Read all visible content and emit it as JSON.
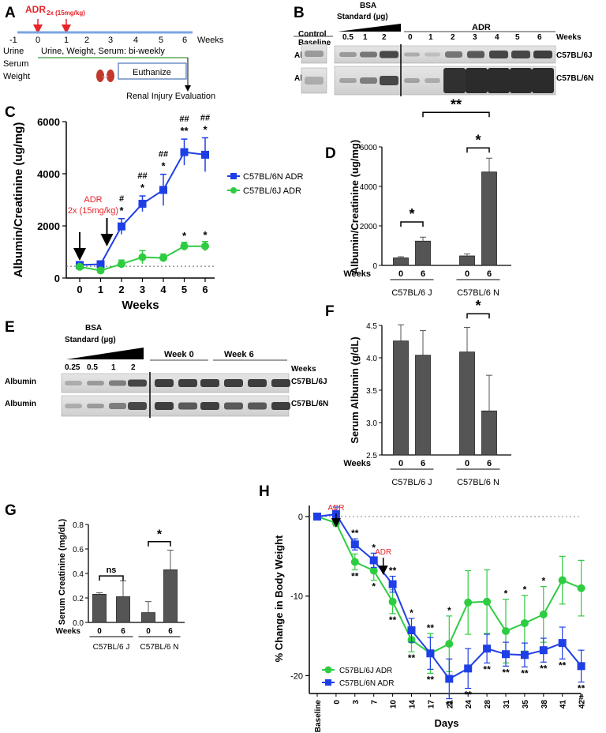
{
  "colors": {
    "blue": "#1f3fe6",
    "green": "#2ecc40",
    "red": "#e8232a",
    "bar": "#555555",
    "gel_bg": "#dcdcdc"
  },
  "panel_letters": [
    "A",
    "B",
    "C",
    "D",
    "E",
    "F",
    "G",
    "H"
  ],
  "panelA": {
    "adr_label": "ADR",
    "adr_sub": "2x (15mg/kg)",
    "weeks": [
      "-1",
      "0",
      "1",
      "2",
      "3",
      "4",
      "5",
      "6"
    ],
    "weeks_label": "Weeks",
    "rows": [
      "Urine",
      "Serum",
      "Weight"
    ],
    "bi_weekly": "Urine, Weight, Serum:  bi-weekly",
    "euthanize": "Euthanize",
    "renal": "Renal Injury Evaluation"
  },
  "panelB": {
    "control": "Control",
    "baseline": "Baseline",
    "bsa_title": "BSA",
    "bsa_standard": "Standard (µg)",
    "bsa_values": [
      "0.5",
      "1",
      "2"
    ],
    "adr": "ADR",
    "weeks": [
      "0",
      "1",
      "2",
      "3",
      "4",
      "5",
      "6"
    ],
    "weeks_label": "Weeks",
    "albumin": "Albumin",
    "strain1": "C57BL/6J",
    "strain2": "C57BL/6N"
  },
  "panelE": {
    "bsa_title": "BSA",
    "bsa_standard": "Standard (µg)",
    "bsa_values": [
      "0.25",
      "0.5",
      "1",
      "2"
    ],
    "week0": "Week 0",
    "week6": "Week 6",
    "weeks_label": "Weeks",
    "albumin": "Albumin",
    "strain1": "C57BL/6J",
    "strain2": "C57BL/6N"
  },
  "chart_data": [
    {
      "id": "C",
      "type": "line",
      "title": "",
      "xlabel": "Weeks",
      "ylabel": "Albumin/Creatinine (ug/mg)",
      "ylim": [
        0,
        6000
      ],
      "yticks": [
        "0",
        "2000",
        "4000",
        "6000"
      ],
      "x": [
        0,
        1,
        2,
        3,
        4,
        5,
        6
      ],
      "series": [
        {
          "name": "C57BL/6N ADR",
          "values": [
            500,
            530,
            1980,
            2850,
            3380,
            4830,
            4730
          ],
          "err": [
            110,
            120,
            300,
            300,
            600,
            500,
            650
          ]
        },
        {
          "name": "C57BL/6J ADR",
          "values": [
            430,
            290,
            540,
            800,
            770,
            1220,
            1220
          ],
          "err": [
            90,
            90,
            150,
            250,
            150,
            150,
            180
          ]
        }
      ],
      "baseline_dotted": 450,
      "adr_annotation": "ADR",
      "adr_annotation2": "2x (15mg/kg)",
      "sig_top": [
        "",
        "",
        "#",
        "##",
        "##",
        "##",
        "##"
      ],
      "sig_mid": [
        "",
        "",
        "*",
        "*",
        "*",
        "**",
        "*"
      ],
      "sig_green": [
        "",
        "",
        "",
        "",
        "",
        "*",
        "*"
      ]
    },
    {
      "id": "D",
      "type": "bar",
      "ylabel": "Albumin/Creatinine (ug/mg)",
      "ylim": [
        0,
        6000
      ],
      "yticks": [
        "0",
        "2000",
        "4000",
        "6000"
      ],
      "categories": [
        "0",
        "6",
        "0",
        "6"
      ],
      "groups": [
        "C57BL/6 J",
        "C57BL/6 N"
      ],
      "weeks_label": "Weeks",
      "values": [
        380,
        1230,
        480,
        4730
      ],
      "err": [
        60,
        200,
        100,
        700
      ],
      "sig": [
        "*",
        "*",
        "**"
      ]
    },
    {
      "id": "F",
      "type": "bar",
      "ylabel": "Serum Albumin (g/dL)",
      "ylim": [
        2.5,
        4.5
      ],
      "yticks": [
        "2.5",
        "3.0",
        "3.5",
        "4.0",
        "4.5"
      ],
      "categories": [
        "0",
        "6",
        "0",
        "6"
      ],
      "groups": [
        "C57BL/6 J",
        "C57BL/6 N"
      ],
      "weeks_label": "Weeks",
      "values": [
        4.26,
        4.04,
        4.09,
        3.18
      ],
      "err": [
        0.25,
        0.38,
        0.38,
        0.55
      ],
      "sig": [
        "*"
      ]
    },
    {
      "id": "G",
      "type": "bar",
      "ylabel": "Serum Creatinine (mg/dL)",
      "ylim": [
        0,
        0.8
      ],
      "yticks": [
        "0.0",
        "0.2",
        "0.4",
        "0.6",
        "0.8"
      ],
      "categories": [
        "0",
        "6",
        "0",
        "6"
      ],
      "groups": [
        "C57BL/6 J",
        "C57BL/6 N"
      ],
      "weeks_label": "Weeks",
      "values": [
        0.23,
        0.21,
        0.08,
        0.43
      ],
      "err": [
        0.012,
        0.13,
        0.09,
        0.16
      ],
      "sig": [
        "ns",
        "*"
      ]
    },
    {
      "id": "H",
      "type": "line",
      "xlabel": "Days",
      "ylabel": "% Change in Body Weight",
      "ylim": [
        -25,
        2
      ],
      "yticks": [
        "0",
        "-10",
        "-20"
      ],
      "categories": [
        "Baseline",
        "0",
        "3",
        "7",
        "10",
        "14",
        "17",
        "21",
        "24",
        "28",
        "31",
        "35",
        "38",
        "41",
        "42"
      ],
      "series": [
        {
          "name": "C57BL/6J ADR",
          "values": [
            0,
            -0.8,
            -5.7,
            -6.8,
            -10.7,
            -15.5,
            -17.2,
            -16.0,
            -10.8,
            -10.7,
            -14.4,
            -13.4,
            -12.3,
            -8.0,
            -9.0
          ],
          "err": [
            0,
            0.4,
            1.0,
            1.2,
            1.5,
            1.5,
            2.5,
            3.5,
            4.0,
            4.0,
            4.0,
            3.5,
            3.5,
            3.0,
            3.5
          ]
        },
        {
          "name": "C57BL/6N ADR",
          "values": [
            0,
            0.3,
            -3.5,
            -5.5,
            -8.5,
            -14.3,
            -17.2,
            -20.4,
            -19.1,
            -16.6,
            -17.3,
            -17.4,
            -16.8,
            -15.9,
            -18.8
          ],
          "err": [
            0,
            0.9,
            0.7,
            0.9,
            1.0,
            1.5,
            2.0,
            2.5,
            2.5,
            1.8,
            1.5,
            1.5,
            1.5,
            2.0,
            2.0
          ]
        }
      ],
      "adr_label": "ADR",
      "sig_above": [
        "",
        "",
        "**",
        "*",
        "**",
        "*",
        "**",
        "*",
        "",
        "",
        "*",
        "*",
        "*",
        "",
        ""
      ],
      "sig_below": [
        "",
        "",
        "**",
        "*",
        "**",
        "**",
        "**",
        "**",
        "**",
        "**",
        "**",
        "**",
        "**",
        "**",
        "**"
      ],
      "sig_hash": [
        "",
        "",
        "",
        "",
        "",
        "",
        "",
        "",
        "",
        "",
        "",
        "",
        "",
        "",
        "#"
      ]
    }
  ]
}
